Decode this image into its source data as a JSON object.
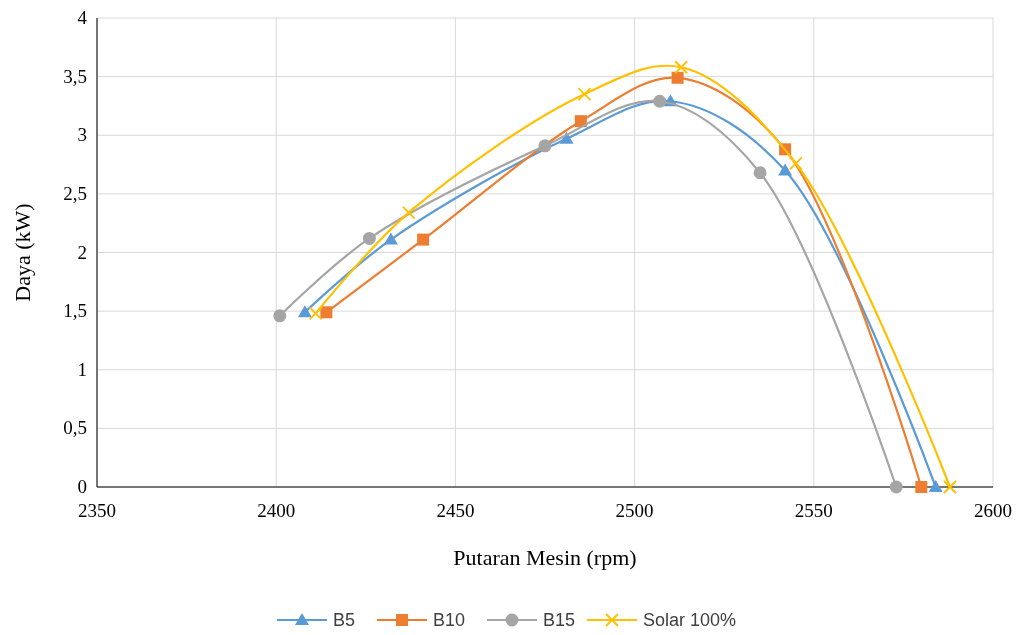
{
  "chart_data": {
    "type": "line",
    "xlabel": "Putaran Mesin (rpm)",
    "ylabel": "Daya (kW)",
    "xlim": [
      2350,
      2600
    ],
    "xticks": [
      2350,
      2400,
      2450,
      2500,
      2550,
      2600
    ],
    "ylim": [
      0,
      4
    ],
    "yticks": [
      0,
      {
        "value": 0.5,
        "label": "0,5"
      },
      1,
      {
        "value": 1.5,
        "label": "1,5"
      },
      2,
      {
        "value": 2.5,
        "label": "2,5"
      },
      3,
      {
        "value": 3.5,
        "label": "3,5"
      },
      4
    ],
    "grid": true,
    "legend": "bottom",
    "series": [
      {
        "name": "B5",
        "color": "#5b9bd5",
        "marker": "triangle",
        "x": [
          2408,
          2432,
          2481,
          2510,
          2542,
          2584
        ],
        "values": [
          1.49,
          2.11,
          2.97,
          3.29,
          2.7,
          0
        ]
      },
      {
        "name": "B10",
        "color": "#ed7d31",
        "marker": "square",
        "x": [
          2414,
          2441,
          2485,
          2512,
          2542,
          2580
        ],
        "values": [
          1.49,
          2.11,
          3.12,
          3.49,
          2.88,
          0
        ]
      },
      {
        "name": "B15",
        "color": "#a5a5a5",
        "marker": "circle",
        "x": [
          2401,
          2426,
          2475,
          2507,
          2535,
          2573
        ],
        "values": [
          1.46,
          2.12,
          2.91,
          3.29,
          2.68,
          0
        ]
      },
      {
        "name": "Solar 100%",
        "color": "#ffc000",
        "marker": "cross",
        "x": [
          2411,
          2437,
          2486,
          2513,
          2545,
          2588
        ],
        "values": [
          1.48,
          2.34,
          3.35,
          3.58,
          2.76,
          0
        ]
      }
    ]
  }
}
